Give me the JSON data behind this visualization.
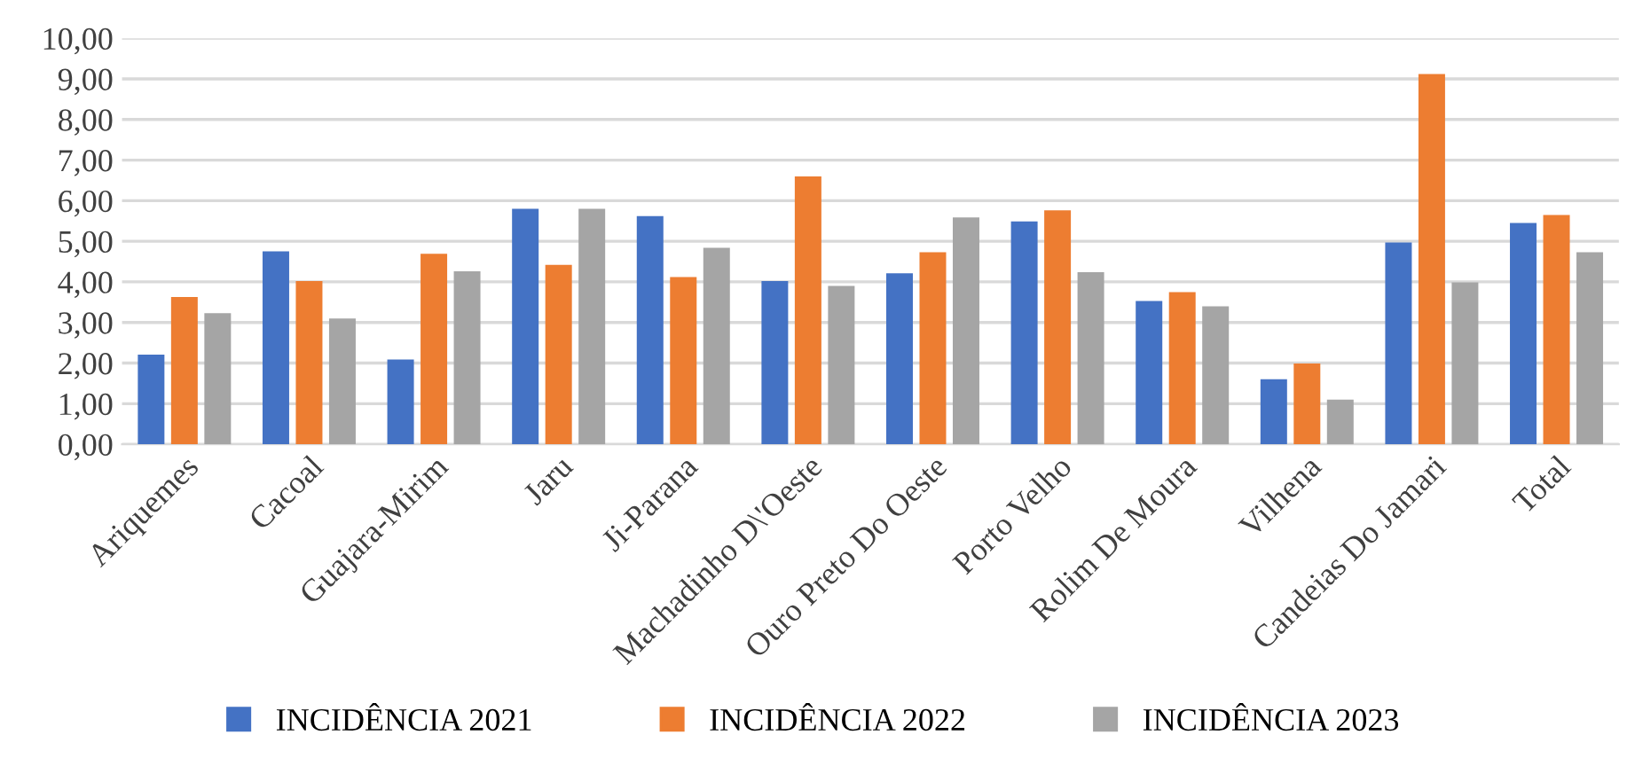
{
  "chart_data": {
    "type": "bar",
    "categories": [
      "Ariquemes",
      "Cacoal",
      "Guajara-Mirim",
      "Jaru",
      "Ji-Parana",
      "Machadinho D\\'Oeste",
      "Ouro Preto Do Oeste",
      "Porto Velho",
      "Rolim De Moura",
      "Vilhena",
      "Candeias Do Jamari",
      "Total"
    ],
    "series": [
      {
        "name": "INCIDÊNCIA 2021",
        "color": "#4472c4",
        "values": [
          2.21,
          4.75,
          2.09,
          5.8,
          5.62,
          4.02,
          4.21,
          5.49,
          3.53,
          1.6,
          4.97,
          5.45
        ]
      },
      {
        "name": "INCIDÊNCIA 2022",
        "color": "#ed7d31",
        "values": [
          3.63,
          4.02,
          4.69,
          4.42,
          4.12,
          6.6,
          4.73,
          5.76,
          3.75,
          1.99,
          9.12,
          5.65
        ]
      },
      {
        "name": "INCIDÊNCIA 2023",
        "color": "#a5a5a5",
        "values": [
          3.23,
          3.1,
          4.26,
          5.8,
          4.84,
          3.9,
          5.59,
          4.24,
          3.4,
          1.1,
          3.99,
          4.73
        ]
      }
    ],
    "ylim": [
      0,
      10
    ],
    "yticks": [
      {
        "value": 0,
        "label": "0,00"
      },
      {
        "value": 1,
        "label": "1,00"
      },
      {
        "value": 2,
        "label": "2,00"
      },
      {
        "value": 3,
        "label": "3,00"
      },
      {
        "value": 4,
        "label": "4,00"
      },
      {
        "value": 5,
        "label": "5,00"
      },
      {
        "value": 6,
        "label": "6,00"
      },
      {
        "value": 7,
        "label": "7,00"
      },
      {
        "value": 8,
        "label": "8,00"
      },
      {
        "value": 9,
        "label": "9,00"
      },
      {
        "value": 10,
        "label": "10,00"
      }
    ],
    "grid": "y",
    "legend": "bottom"
  }
}
